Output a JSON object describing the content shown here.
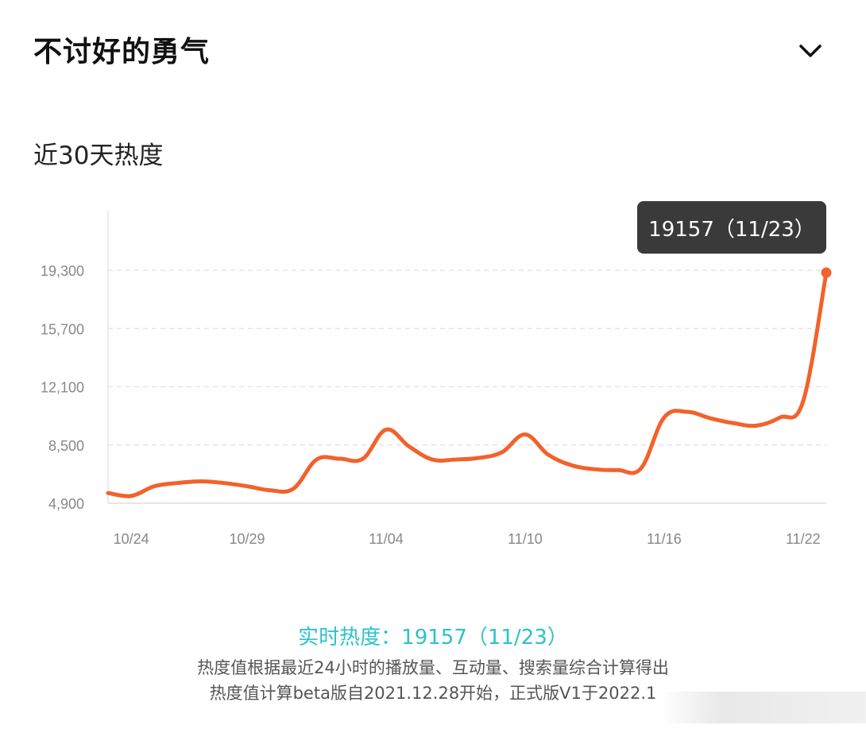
{
  "header": {
    "title": "不讨好的勇气",
    "toggle_icon": "chevron-down-icon"
  },
  "chart_title": "近30天热度",
  "tooltip": {
    "text": "19157（11/23）"
  },
  "colors": {
    "line": "#f2622a",
    "tooltip_bg": "#3a3a3a",
    "realtime": "#2cc3c8",
    "grid": "#e0e0e0",
    "tick": "#888888"
  },
  "chart_data": {
    "type": "line",
    "title": "近30天热度",
    "xlabel": "",
    "ylabel": "",
    "ylim": [
      4900,
      19300
    ],
    "yticks": [
      4900,
      8500,
      12100,
      15700,
      19300
    ],
    "ytick_labels": [
      "4,900",
      "8,500",
      "12,100",
      "15,700",
      "19,300"
    ],
    "xticks": [
      "10/24",
      "10/29",
      "11/04",
      "11/10",
      "11/16",
      "11/22"
    ],
    "xtick_index": [
      1,
      6,
      12,
      18,
      24,
      30
    ],
    "grid": true,
    "x": [
      "10/23",
      "10/24",
      "10/25",
      "10/26",
      "10/27",
      "10/28",
      "10/29",
      "10/30",
      "10/31",
      "11/01",
      "11/02",
      "11/03",
      "11/04",
      "11/05",
      "11/06",
      "11/07",
      "11/08",
      "11/09",
      "11/10",
      "11/11",
      "11/12",
      "11/13",
      "11/14",
      "11/15",
      "11/16",
      "11/17",
      "11/18",
      "11/19",
      "11/20",
      "11/21",
      "11/22",
      "11/23"
    ],
    "series": [
      {
        "values": [
          5530,
          5350,
          5950,
          6150,
          6250,
          6150,
          5950,
          5700,
          5800,
          7600,
          7650,
          7650,
          9450,
          8400,
          7600,
          7600,
          7700,
          8050,
          9150,
          7900,
          7250,
          7000,
          6950,
          7050,
          10200,
          10550,
          10150,
          9850,
          9700,
          10200,
          11200,
          19157
        ]
      }
    ],
    "highlight": {
      "x": "11/23",
      "value": 19157
    }
  },
  "footer": {
    "realtime": "实时热度：19157（11/23）",
    "note_line1": "热度值根据最近24小时的播放量、互动量、搜索量综合计算得出",
    "note_line2": "热度值计算beta版自2021.12.28开始，正式版V1于2022.1"
  }
}
